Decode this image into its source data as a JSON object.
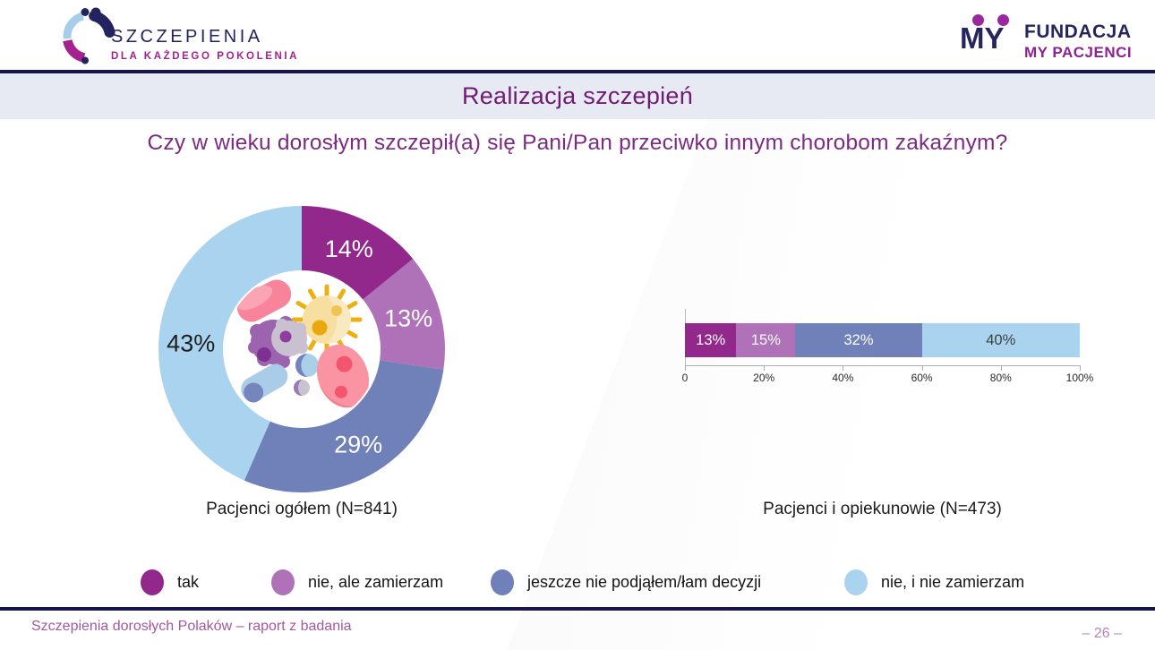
{
  "header": {
    "logo_left": {
      "line1": "SZCZEPIENIA",
      "line2": "DLA KAŻDEGO POKOLENIA"
    },
    "logo_right": {
      "mark": "MY",
      "line1": "FUNDACJA",
      "line2": "MY PACJENCI"
    }
  },
  "title": "Realizacja szczepień",
  "question": "Czy w wieku dorosłym szczepił(a) się Pani/Pan przeciwko innym chorobom zakaźnym?",
  "palette": [
    "#92278c",
    "#af72b8",
    "#7080b8",
    "#a9d3ee"
  ],
  "legend": [
    {
      "label": "tak",
      "color": "#92278c"
    },
    {
      "label": "nie, ale zamierzam",
      "color": "#af72b8"
    },
    {
      "label": "jeszcze nie podjąłem/łam decyzji",
      "color": "#7080b8"
    },
    {
      "label": "nie, i nie zamierzam",
      "color": "#a9d3ee"
    }
  ],
  "chart_data": [
    {
      "type": "pie",
      "subtype": "donut",
      "title": "Pacjenci ogółem (N=841)",
      "categories": [
        "tak",
        "nie, ale zamierzam",
        "jeszcze nie podjąłem/łam decyzji",
        "nie, i nie zamierzam"
      ],
      "values": [
        14,
        13,
        29,
        43
      ],
      "unit": "%",
      "colors": [
        "#92278c",
        "#af72b8",
        "#7080b8",
        "#a9d3ee"
      ],
      "label_colors": [
        "#ffffff",
        "#ffffff",
        "#ffffff",
        "#1f1f1f"
      ],
      "start_angle_deg": 0,
      "direction": "clockwise",
      "label_angles_deg": [
        25.2,
        73.8,
        149.4,
        273
      ]
    },
    {
      "type": "bar",
      "subtype": "stacked-horizontal",
      "title": "Pacjenci i opiekunowie (N=473)",
      "categories": [
        "tak",
        "nie, ale zamierzam",
        "jeszcze nie podjąłem/łam decyzji",
        "nie, i nie zamierzam"
      ],
      "values": [
        13,
        15,
        32,
        40
      ],
      "unit": "%",
      "colors": [
        "#92278c",
        "#af72b8",
        "#7080b8",
        "#a9d3ee"
      ],
      "label_colors": [
        "#ffffff",
        "#ffffff",
        "#ffffff",
        "#3f3f3f"
      ],
      "xlim": [
        0,
        100
      ],
      "x_ticks": [
        "0",
        "20%",
        "40%",
        "60%",
        "80%",
        "100%"
      ],
      "grid": false,
      "legend_position": "bottom"
    }
  ],
  "footer": {
    "source": "Szczepienia dorosłych Polaków – raport z badania",
    "page": "– 26 –"
  }
}
